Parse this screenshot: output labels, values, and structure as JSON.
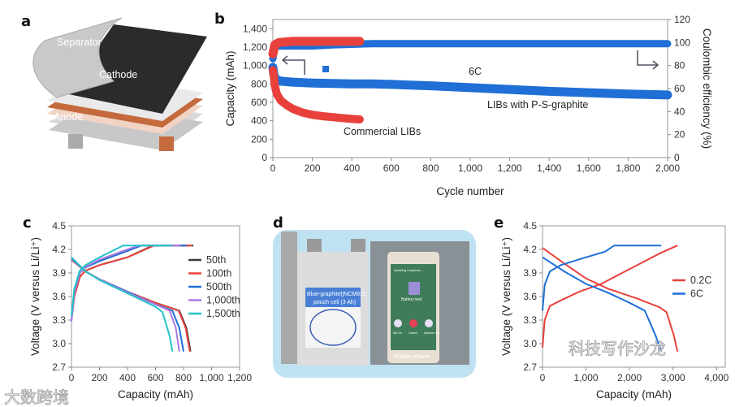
{
  "panels": {
    "a": "a",
    "b": "b",
    "c": "c",
    "d": "d",
    "e": "e"
  },
  "panel_a": {
    "separator": "Separator",
    "cathode": "Cathode",
    "anode": "Anode"
  },
  "panel_d": {
    "cell_label_1": "Blue-graphite||NCM622",
    "cell_label_2": "pouch cell (3 Ah)",
    "phone_status": "Awaiting response...",
    "battery_test": "Battery test",
    "mic": "Mic On",
    "cancel": "Cancel",
    "speaker": "Speaker On",
    "caption": "Mobile phone"
  },
  "watermarks": {
    "left": "大数跨境",
    "right": "科技写作沙龙"
  },
  "colors": {
    "red": "#e8413c",
    "blue": "#1f6fd6",
    "dark": "#3a3a3a",
    "purple": "#a97be0",
    "cyan": "#22c3c8",
    "axis": "#888888"
  },
  "chart_data": [
    {
      "id": "b",
      "type": "scatter",
      "xlabel": "Cycle number",
      "ylabel": "Capacity (mAh)",
      "y2label": "Coulombic efficiency (%)",
      "xlim": [
        0,
        2000
      ],
      "ylim": [
        0,
        1500
      ],
      "y2lim": [
        0,
        120
      ],
      "xticks": [
        "0",
        "200",
        "400",
        "600",
        "800",
        "1,000",
        "1,200",
        "1,400",
        "1,600",
        "1,800",
        "2,000"
      ],
      "xtick_values": [
        0,
        200,
        400,
        600,
        800,
        1000,
        1200,
        1400,
        1600,
        1800,
        2000
      ],
      "yticks": [
        "0",
        "200",
        "400",
        "600",
        "800",
        "1,000",
        "1,200",
        "1,400"
      ],
      "ytick_values": [
        0,
        200,
        400,
        600,
        800,
        1000,
        1200,
        1400
      ],
      "y2ticks": [
        "0",
        "20",
        "40",
        "60",
        "80",
        "100",
        "120"
      ],
      "y2tick_values": [
        0,
        20,
        40,
        60,
        80,
        100,
        120
      ],
      "annotations": {
        "rate": "6C",
        "ps": "LIBs with P-S-graphite",
        "commercial": "Commercial LIBs"
      },
      "series": [
        {
          "name": "LIBs with P-S-graphite capacity",
          "axis": "left",
          "color": "#1f6fd6",
          "x": [
            0,
            5,
            15,
            40,
            100,
            200,
            300,
            400,
            500,
            600,
            800,
            1000,
            1200,
            1400,
            1600,
            1800,
            2000
          ],
          "y": [
            980,
            900,
            850,
            830,
            820,
            810,
            805,
            800,
            800,
            795,
            780,
            760,
            740,
            720,
            705,
            690,
            680
          ]
        },
        {
          "name": "Commercial LIBs capacity",
          "axis": "left",
          "color": "#e8413c",
          "x": [
            0,
            5,
            10,
            20,
            40,
            70,
            100,
            150,
            200,
            250,
            300,
            350,
            400,
            440
          ],
          "y": [
            950,
            880,
            780,
            690,
            620,
            570,
            530,
            490,
            465,
            450,
            440,
            430,
            420,
            415
          ]
        },
        {
          "name": "LIBs with P-S-graphite CE",
          "axis": "right",
          "color": "#1f6fd6",
          "x": [
            0,
            10,
            30,
            100,
            200,
            300,
            500,
            1000,
            1500,
            2000
          ],
          "y": [
            86,
            96,
            97,
            97,
            97,
            98,
            99,
            99,
            99,
            99
          ]
        },
        {
          "name": "Commercial LIBs CE",
          "axis": "right",
          "color": "#e8413c",
          "x": [
            0,
            10,
            30,
            100,
            200,
            300,
            440
          ],
          "y": [
            90,
            98,
            100,
            101,
            101,
            101,
            101
          ]
        }
      ]
    },
    {
      "id": "c",
      "type": "line",
      "xlabel": "Capacity (mAh)",
      "ylabel": "Voltage (V versus Li/Li⁺)",
      "xlim": [
        0,
        1200
      ],
      "ylim": [
        2.7,
        4.5
      ],
      "xticks": [
        "0",
        "200",
        "400",
        "600",
        "800",
        "1,000",
        "1,200"
      ],
      "xtick_values": [
        0,
        200,
        400,
        600,
        800,
        1000,
        1200
      ],
      "yticks": [
        "2.7",
        "3.0",
        "3.3",
        "3.6",
        "3.9",
        "4.2",
        "4.5"
      ],
      "ytick_values": [
        2.7,
        3.0,
        3.3,
        3.6,
        3.9,
        4.2,
        4.5
      ],
      "legend_position": "right",
      "series": [
        {
          "name": "50th",
          "color": "#3a3a3a",
          "charge": {
            "x": [
              0,
              20,
              60,
              100,
              200,
              400,
              580,
              870
            ],
            "y": [
              3.3,
              3.6,
              3.85,
              3.93,
              4.0,
              4.1,
              4.25,
              4.25
            ]
          },
          "discharge": {
            "x": [
              0,
              100,
              200,
              400,
              600,
              770,
              820,
              850
            ],
            "y": [
              4.07,
              3.92,
              3.82,
              3.66,
              3.52,
              3.42,
              3.2,
              2.9
            ]
          }
        },
        {
          "name": "100th",
          "color": "#e8413c",
          "charge": {
            "x": [
              0,
              20,
              60,
              100,
              200,
              400,
              590,
              860
            ],
            "y": [
              3.3,
              3.6,
              3.85,
              3.93,
              4.0,
              4.1,
              4.25,
              4.25
            ]
          },
          "discharge": {
            "x": [
              0,
              100,
              200,
              400,
              600,
              765,
              815,
              845
            ],
            "y": [
              4.07,
              3.92,
              3.82,
              3.66,
              3.52,
              3.42,
              3.2,
              2.9
            ]
          }
        },
        {
          "name": "500th",
          "color": "#1f6fd6",
          "charge": {
            "x": [
              0,
              20,
              60,
              100,
              200,
              400,
              500,
              820
            ],
            "y": [
              3.3,
              3.65,
              3.9,
              3.97,
              4.05,
              4.18,
              4.25,
              4.25
            ]
          },
          "discharge": {
            "x": [
              0,
              100,
              200,
              400,
              600,
              720,
              770,
              800
            ],
            "y": [
              4.08,
              3.92,
              3.82,
              3.66,
              3.5,
              3.42,
              3.2,
              2.9
            ]
          }
        },
        {
          "name": "1,000th",
          "color": "#a97be0",
          "charge": {
            "x": [
              0,
              20,
              60,
              100,
              200,
              400,
              480,
              780
            ],
            "y": [
              3.28,
              3.65,
              3.9,
              3.98,
              4.07,
              4.2,
              4.25,
              4.25
            ]
          },
          "discharge": {
            "x": [
              0,
              100,
              200,
              400,
              600,
              700,
              745,
              770
            ],
            "y": [
              4.09,
              3.92,
              3.82,
              3.65,
              3.5,
              3.42,
              3.2,
              2.9
            ]
          }
        },
        {
          "name": "1,500th",
          "color": "#22c3c8",
          "charge": {
            "x": [
              0,
              20,
              60,
              100,
              200,
              370,
              720
            ],
            "y": [
              3.35,
              3.7,
              3.93,
              4.0,
              4.1,
              4.25,
              4.25
            ]
          },
          "discharge": {
            "x": [
              0,
              100,
              200,
              400,
              600,
              650,
              700,
              720
            ],
            "y": [
              4.1,
              3.92,
              3.81,
              3.64,
              3.47,
              3.4,
              3.1,
              2.9
            ]
          }
        }
      ]
    },
    {
      "id": "e",
      "type": "line",
      "xlabel": "Capacity (mAh)",
      "ylabel": "Voltage (V versus Li/Li⁺)",
      "xlim": [
        0,
        4200
      ],
      "ylim": [
        2.7,
        4.5
      ],
      "xticks": [
        "0",
        "1,000",
        "2,000",
        "3,000",
        "4,000"
      ],
      "xtick_values": [
        0,
        1000,
        2000,
        3000,
        4000
      ],
      "yticks": [
        "2.7",
        "3.0",
        "3.3",
        "3.6",
        "3.9",
        "4.2",
        "4.5"
      ],
      "ytick_values": [
        2.7,
        3.0,
        3.3,
        3.6,
        3.9,
        4.2,
        4.5
      ],
      "legend_position": "right",
      "series": [
        {
          "name": "0.2C",
          "color": "#e8413c",
          "charge": {
            "x": [
              0,
              50,
              170,
              420,
              840,
              1350,
              2000,
              2700,
              3100
            ],
            "y": [
              2.95,
              3.3,
              3.48,
              3.55,
              3.66,
              3.76,
              3.95,
              4.15,
              4.25
            ]
          },
          "discharge": {
            "x": [
              0,
              500,
              1000,
              1500,
              2200,
              2700,
              2850,
              3020,
              3100
            ],
            "y": [
              4.22,
              4.02,
              3.83,
              3.7,
              3.57,
              3.46,
              3.4,
              3.1,
              2.9
            ]
          }
        },
        {
          "name": "6C",
          "color": "#1f6fd6",
          "charge": {
            "x": [
              0,
              50,
              170,
              420,
              1000,
              1430,
              1650,
              2730
            ],
            "y": [
              3.42,
              3.75,
              3.92,
              4.0,
              4.1,
              4.17,
              4.25,
              4.25
            ]
          },
          "discharge": {
            "x": [
              0,
              500,
              1000,
              1500,
              2000,
              2350,
              2600,
              2730
            ],
            "y": [
              4.1,
              3.92,
              3.76,
              3.65,
              3.52,
              3.42,
              3.1,
              2.9
            ]
          }
        }
      ]
    }
  ]
}
